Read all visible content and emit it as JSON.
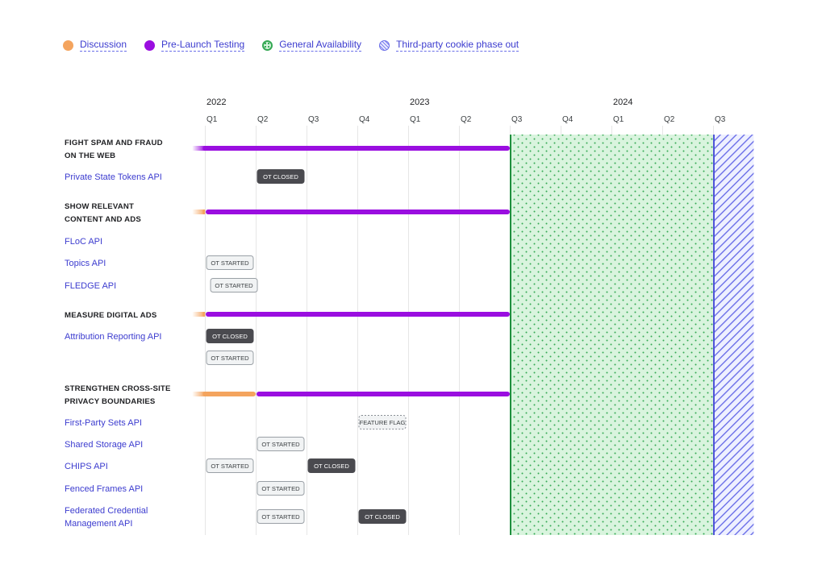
{
  "legend": [
    {
      "label": "Discussion",
      "icon": "orange-dot-icon",
      "color": "#f4a45e"
    },
    {
      "label": "Pre-Launch Testing",
      "icon": "purple-dot-icon",
      "color": "#9a0ee0"
    },
    {
      "label": "General Availability",
      "icon": "green-dotted-circle-icon",
      "color": "#34a853"
    },
    {
      "label": "Third-party cookie phase out",
      "icon": "blue-striped-circle-icon",
      "color": "#6a6ee8"
    }
  ],
  "chart_data": {
    "type": "timeline",
    "years": [
      {
        "label": "2022",
        "start_quarter": 0
      },
      {
        "label": "2023",
        "start_quarter": 4
      },
      {
        "label": "2024",
        "start_quarter": 8
      }
    ],
    "quarters": [
      "Q1",
      "Q2",
      "Q3",
      "Q4",
      "Q1",
      "Q2",
      "Q3",
      "Q4",
      "Q1",
      "Q2",
      "Q3"
    ],
    "general_availability": {
      "start": 6.0,
      "end": 10.0
    },
    "third_party_cookie_phase_out": {
      "start": 10.0,
      "end": 10.8
    },
    "rows": [
      {
        "kind": "section",
        "lines": [
          "FIGHT SPAM AND FRAUD",
          "ON THE WEB"
        ],
        "bars": [
          {
            "type": "pretest",
            "start": -0.25,
            "end": 6.0,
            "fade_start": true
          }
        ]
      },
      {
        "kind": "api",
        "lines": [
          "Private State Tokens API"
        ],
        "badges": [
          {
            "text": "OT CLOSED",
            "style": "closed",
            "at": 1.0
          }
        ]
      },
      {
        "kind": "section",
        "lines": [
          "SHOW RELEVANT",
          "CONTENT AND ADS"
        ],
        "bars": [
          {
            "type": "discussion",
            "start": -0.25,
            "end": 0.0,
            "fade_start": true
          },
          {
            "type": "pretest",
            "start": 0.0,
            "end": 6.0
          }
        ]
      },
      {
        "kind": "api",
        "lines": [
          "FLoC API"
        ],
        "badges": []
      },
      {
        "kind": "api",
        "lines": [
          "Topics API"
        ],
        "badges": [
          {
            "text": "OT STARTED",
            "style": "started",
            "at": 0.0
          }
        ]
      },
      {
        "kind": "api",
        "lines": [
          "FLEDGE API"
        ],
        "badges": [
          {
            "text": "OT STARTED",
            "style": "started",
            "at": 0.08
          }
        ]
      },
      {
        "kind": "section",
        "lines": [
          "MEASURE DIGITAL ADS"
        ],
        "bars": [
          {
            "type": "discussion",
            "start": -0.25,
            "end": 0.0,
            "fade_start": true
          },
          {
            "type": "pretest",
            "start": 0.0,
            "end": 6.0
          }
        ]
      },
      {
        "kind": "api",
        "lines": [
          "Attribution Reporting API"
        ],
        "badges": [
          {
            "text": "OT CLOSED",
            "style": "closed",
            "at": 0.0
          }
        ]
      },
      {
        "kind": "api",
        "lines": [],
        "badges": [
          {
            "text": "OT STARTED",
            "style": "started",
            "at": 0.0
          }
        ]
      },
      {
        "kind": "section",
        "lines": [
          "STRENGTHEN CROSS-SITE",
          "PRIVACY BOUNDARIES"
        ],
        "bars": [
          {
            "type": "discussion",
            "start": -0.25,
            "end": 1.0,
            "fade_start": true
          },
          {
            "type": "pretest",
            "start": 1.0,
            "end": 6.0
          }
        ]
      },
      {
        "kind": "api",
        "lines": [
          "First-Party Sets API"
        ],
        "badges": [
          {
            "text": "FEATURE FLAG",
            "style": "flag",
            "at": 3.0
          }
        ]
      },
      {
        "kind": "api",
        "lines": [
          "Shared Storage API"
        ],
        "badges": [
          {
            "text": "OT STARTED",
            "style": "started",
            "at": 1.0
          }
        ]
      },
      {
        "kind": "api",
        "lines": [
          "CHIPS API"
        ],
        "badges": [
          {
            "text": "OT STARTED",
            "style": "started",
            "at": 0.0
          },
          {
            "text": "OT CLOSED",
            "style": "closed",
            "at": 2.0
          }
        ]
      },
      {
        "kind": "api",
        "lines": [
          "Fenced Frames API"
        ],
        "badges": [
          {
            "text": "OT STARTED",
            "style": "started",
            "at": 1.0
          }
        ]
      },
      {
        "kind": "api",
        "lines": [
          "Federated Credential",
          "Management API"
        ],
        "badges": [
          {
            "text": "OT STARTED",
            "style": "started",
            "at": 1.0
          },
          {
            "text": "OT CLOSED",
            "style": "closed",
            "at": 3.0
          }
        ]
      }
    ]
  }
}
